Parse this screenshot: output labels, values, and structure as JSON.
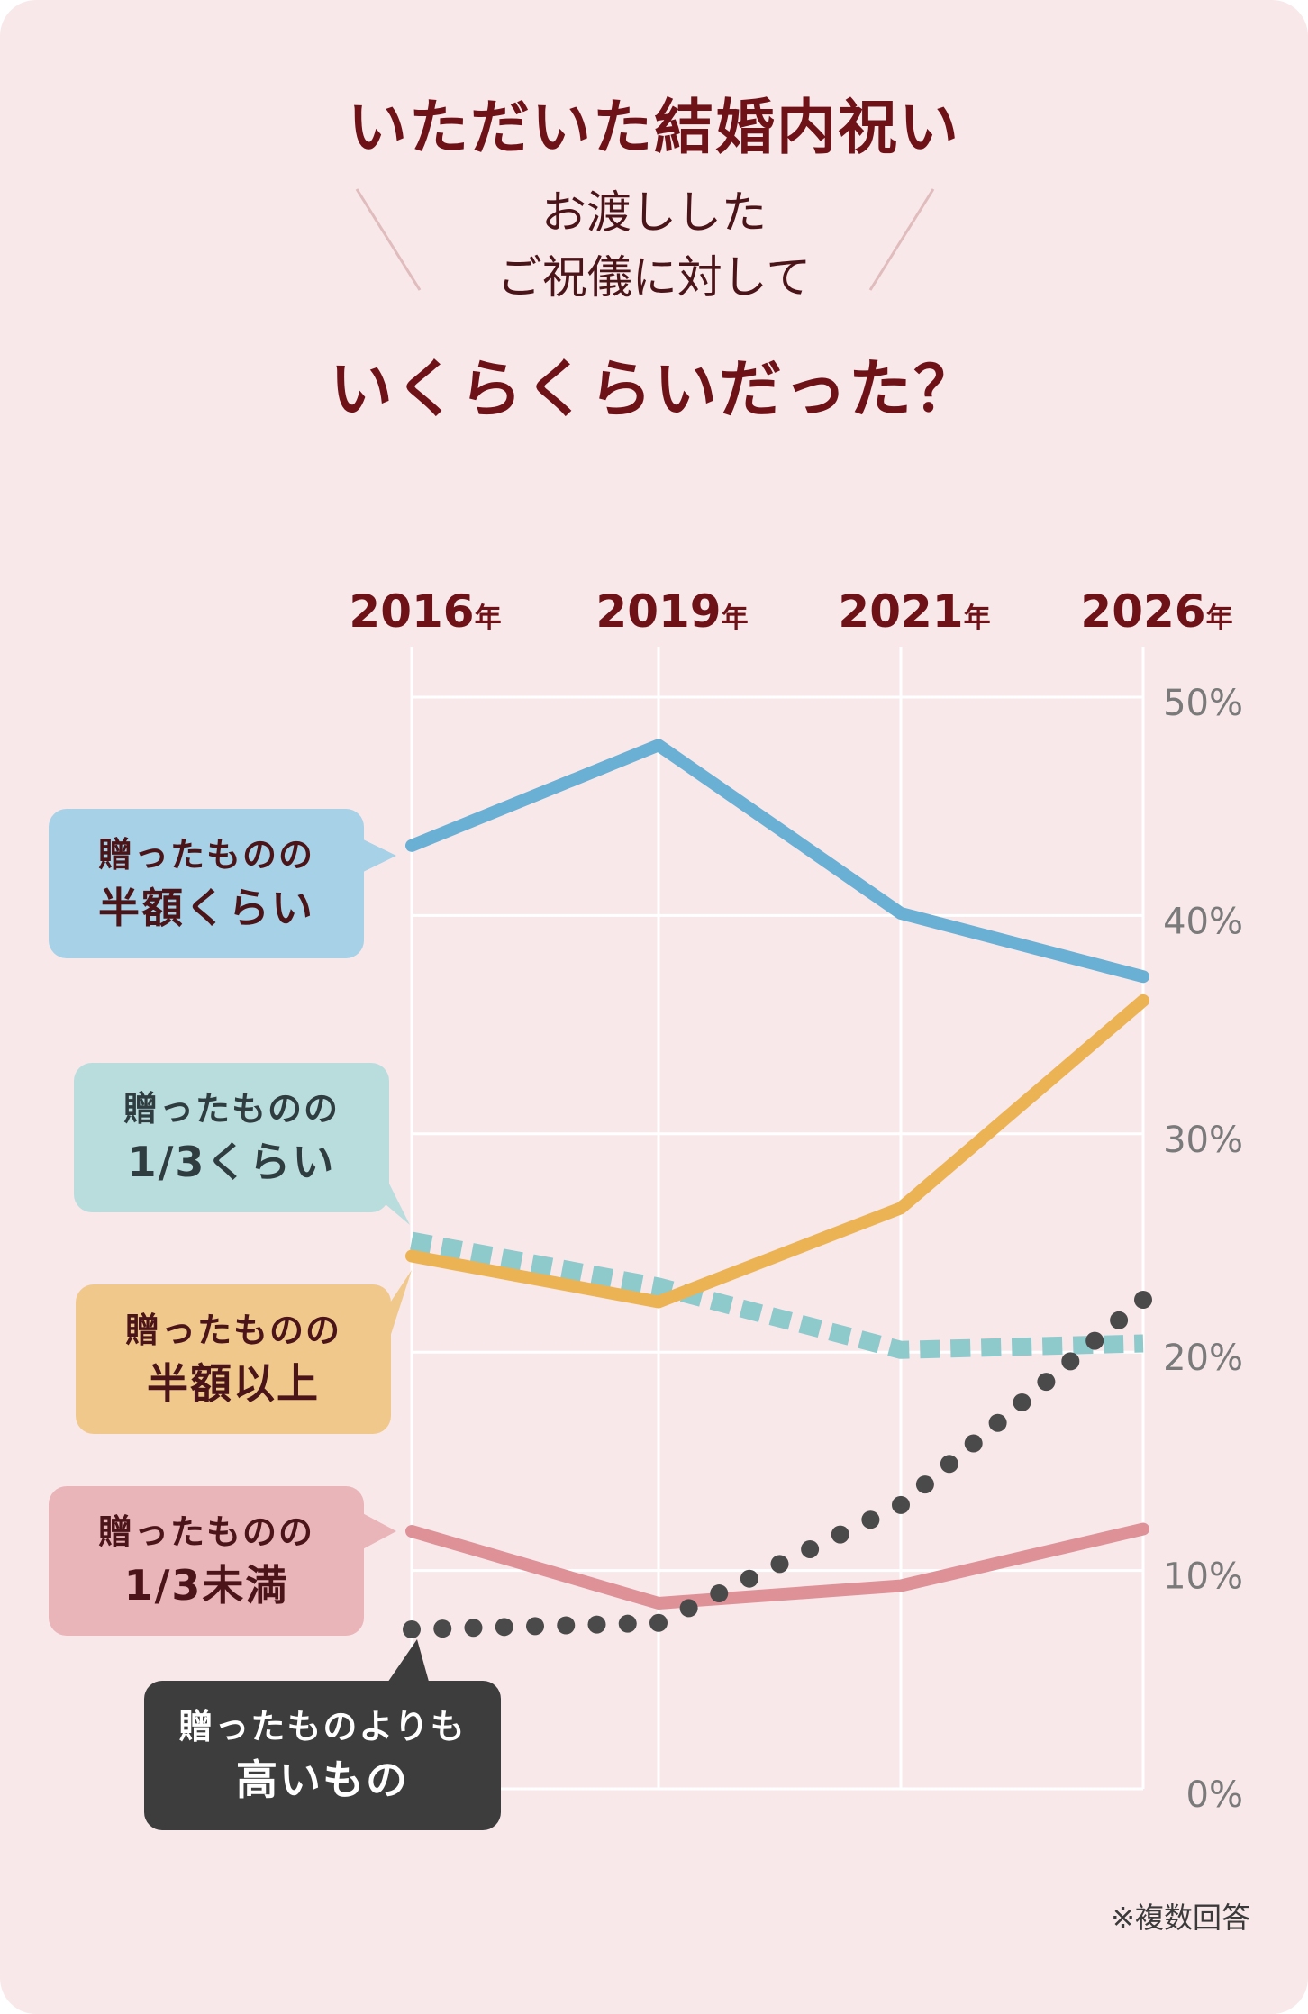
{
  "heading": {
    "line1": "いただいた結婚内祝い",
    "line2a": "お渡しした",
    "line2b": "ご祝儀に対して",
    "line3": "いくらくらいだった？"
  },
  "footnote": "※複数回答",
  "colors": {
    "background": "#f8e8ea",
    "title": "#6e1218",
    "gridline": "#ffffff",
    "half": "#6ab0d4",
    "third": "#8ec9cc",
    "over_half": "#ebb353",
    "under_third": "#de9298",
    "higher": "#4a4a4a"
  },
  "chart_data": {
    "type": "line",
    "x": [
      "2016年",
      "2019年",
      "2021年",
      "2026年"
    ],
    "x_ticks": [
      {
        "year": "2016",
        "unit": "年"
      },
      {
        "year": "2019",
        "unit": "年"
      },
      {
        "year": "2021",
        "unit": "年"
      },
      {
        "year": "2026",
        "unit": "年"
      }
    ],
    "ylim": [
      0,
      50
    ],
    "y_ticks": [
      "0%",
      "10%",
      "20%",
      "30%",
      "40%",
      "50%"
    ],
    "y_tick_values": [
      0,
      10,
      20,
      30,
      40,
      50
    ],
    "grid": true,
    "series": [
      {
        "name": "贈ったものの半額くらい",
        "label_lines": [
          "贈ったものの",
          "半額くらい"
        ],
        "color": "#6ab0d4",
        "style": "solid",
        "values": [
          43.2,
          47.8,
          40.1,
          37.2
        ]
      },
      {
        "name": "贈ったものの1/3くらい",
        "label_lines": [
          "贈ったものの",
          "1/3くらい"
        ],
        "color": "#8ec9cc",
        "style": "dashed",
        "values": [
          25.1,
          23.0,
          20.1,
          20.4
        ]
      },
      {
        "name": "贈ったものの半額以上",
        "label_lines": [
          "贈ったものの",
          "半額以上"
        ],
        "color": "#ebb353",
        "style": "solid",
        "values": [
          24.4,
          22.3,
          26.6,
          36.1
        ]
      },
      {
        "name": "贈ったものの1/3未満",
        "label_lines": [
          "贈ったものの",
          "1/3未満"
        ],
        "color": "#de9298",
        "style": "solid",
        "values": [
          11.8,
          8.5,
          9.3,
          11.9
        ]
      },
      {
        "name": "贈ったものよりも高いもの",
        "label_lines": [
          "贈ったものよりも",
          "高いもの"
        ],
        "color": "#4a4a4a",
        "style": "dotted",
        "values": [
          7.3,
          7.6,
          13.0,
          22.4
        ]
      }
    ]
  }
}
